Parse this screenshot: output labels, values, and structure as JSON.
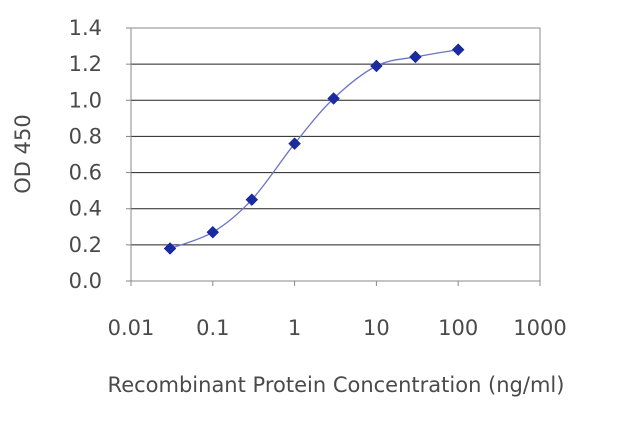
{
  "chart_data": {
    "type": "line",
    "title": "",
    "xlabel": "Recombinant Protein Concentration (ng/ml)",
    "ylabel": "OD 450",
    "xscale": "log",
    "xlim": [
      0.01,
      1000
    ],
    "ylim": [
      0.0,
      1.4
    ],
    "grid": "horizontal",
    "x_ticks": [
      "0.01",
      "0.1",
      "1",
      "10",
      "100",
      "1000"
    ],
    "y_ticks": [
      "0.0",
      "0.2",
      "0.4",
      "0.6",
      "0.8",
      "1.0",
      "1.2",
      "1.4"
    ],
    "series": [
      {
        "x": [
          0.03,
          0.1,
          0.3,
          1,
          3,
          10,
          30,
          100
        ],
        "values": [
          0.18,
          0.27,
          0.45,
          0.76,
          1.01,
          1.19,
          1.24,
          1.28
        ]
      }
    ],
    "colors": {
      "line": "#6b74c9",
      "marker": "#1a2aa0",
      "grid": "#222222",
      "axis": "#888888",
      "text": "#4a4a4a"
    }
  }
}
